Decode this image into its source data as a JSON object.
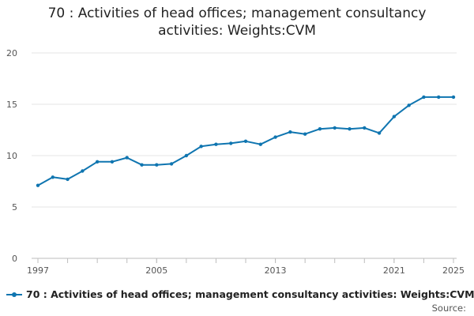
{
  "chart_data": {
    "type": "line",
    "title": "70 : Activities of head offices; management consultancy activities: Weights:CVM",
    "xlabel": "",
    "ylabel": "",
    "ylim": [
      0,
      20
    ],
    "yticks": [
      0,
      5,
      10,
      15,
      20
    ],
    "xlim": [
      1997,
      2025
    ],
    "xticks": [
      1997,
      2005,
      2013,
      2021,
      2025
    ],
    "grid": true,
    "legend_position": "bottom",
    "series": [
      {
        "name": "70 : Activities of head offices; management consultancy activities: Weights:CVM",
        "color": "#0f75b0",
        "x": [
          1997,
          1998,
          1999,
          2000,
          2001,
          2002,
          2003,
          2004,
          2005,
          2006,
          2007,
          2008,
          2009,
          2010,
          2011,
          2012,
          2013,
          2014,
          2015,
          2016,
          2017,
          2018,
          2019,
          2020,
          2021,
          2022,
          2023,
          2024,
          2025
        ],
        "values": [
          7.1,
          7.9,
          7.7,
          8.5,
          9.4,
          9.4,
          9.8,
          9.1,
          9.1,
          9.2,
          10.0,
          10.9,
          11.1,
          11.2,
          11.4,
          11.1,
          11.8,
          12.3,
          12.1,
          12.6,
          12.7,
          12.6,
          12.7,
          12.2,
          13.8,
          14.9,
          15.7,
          15.7,
          15.7
        ]
      }
    ]
  },
  "source_label": "Source:"
}
